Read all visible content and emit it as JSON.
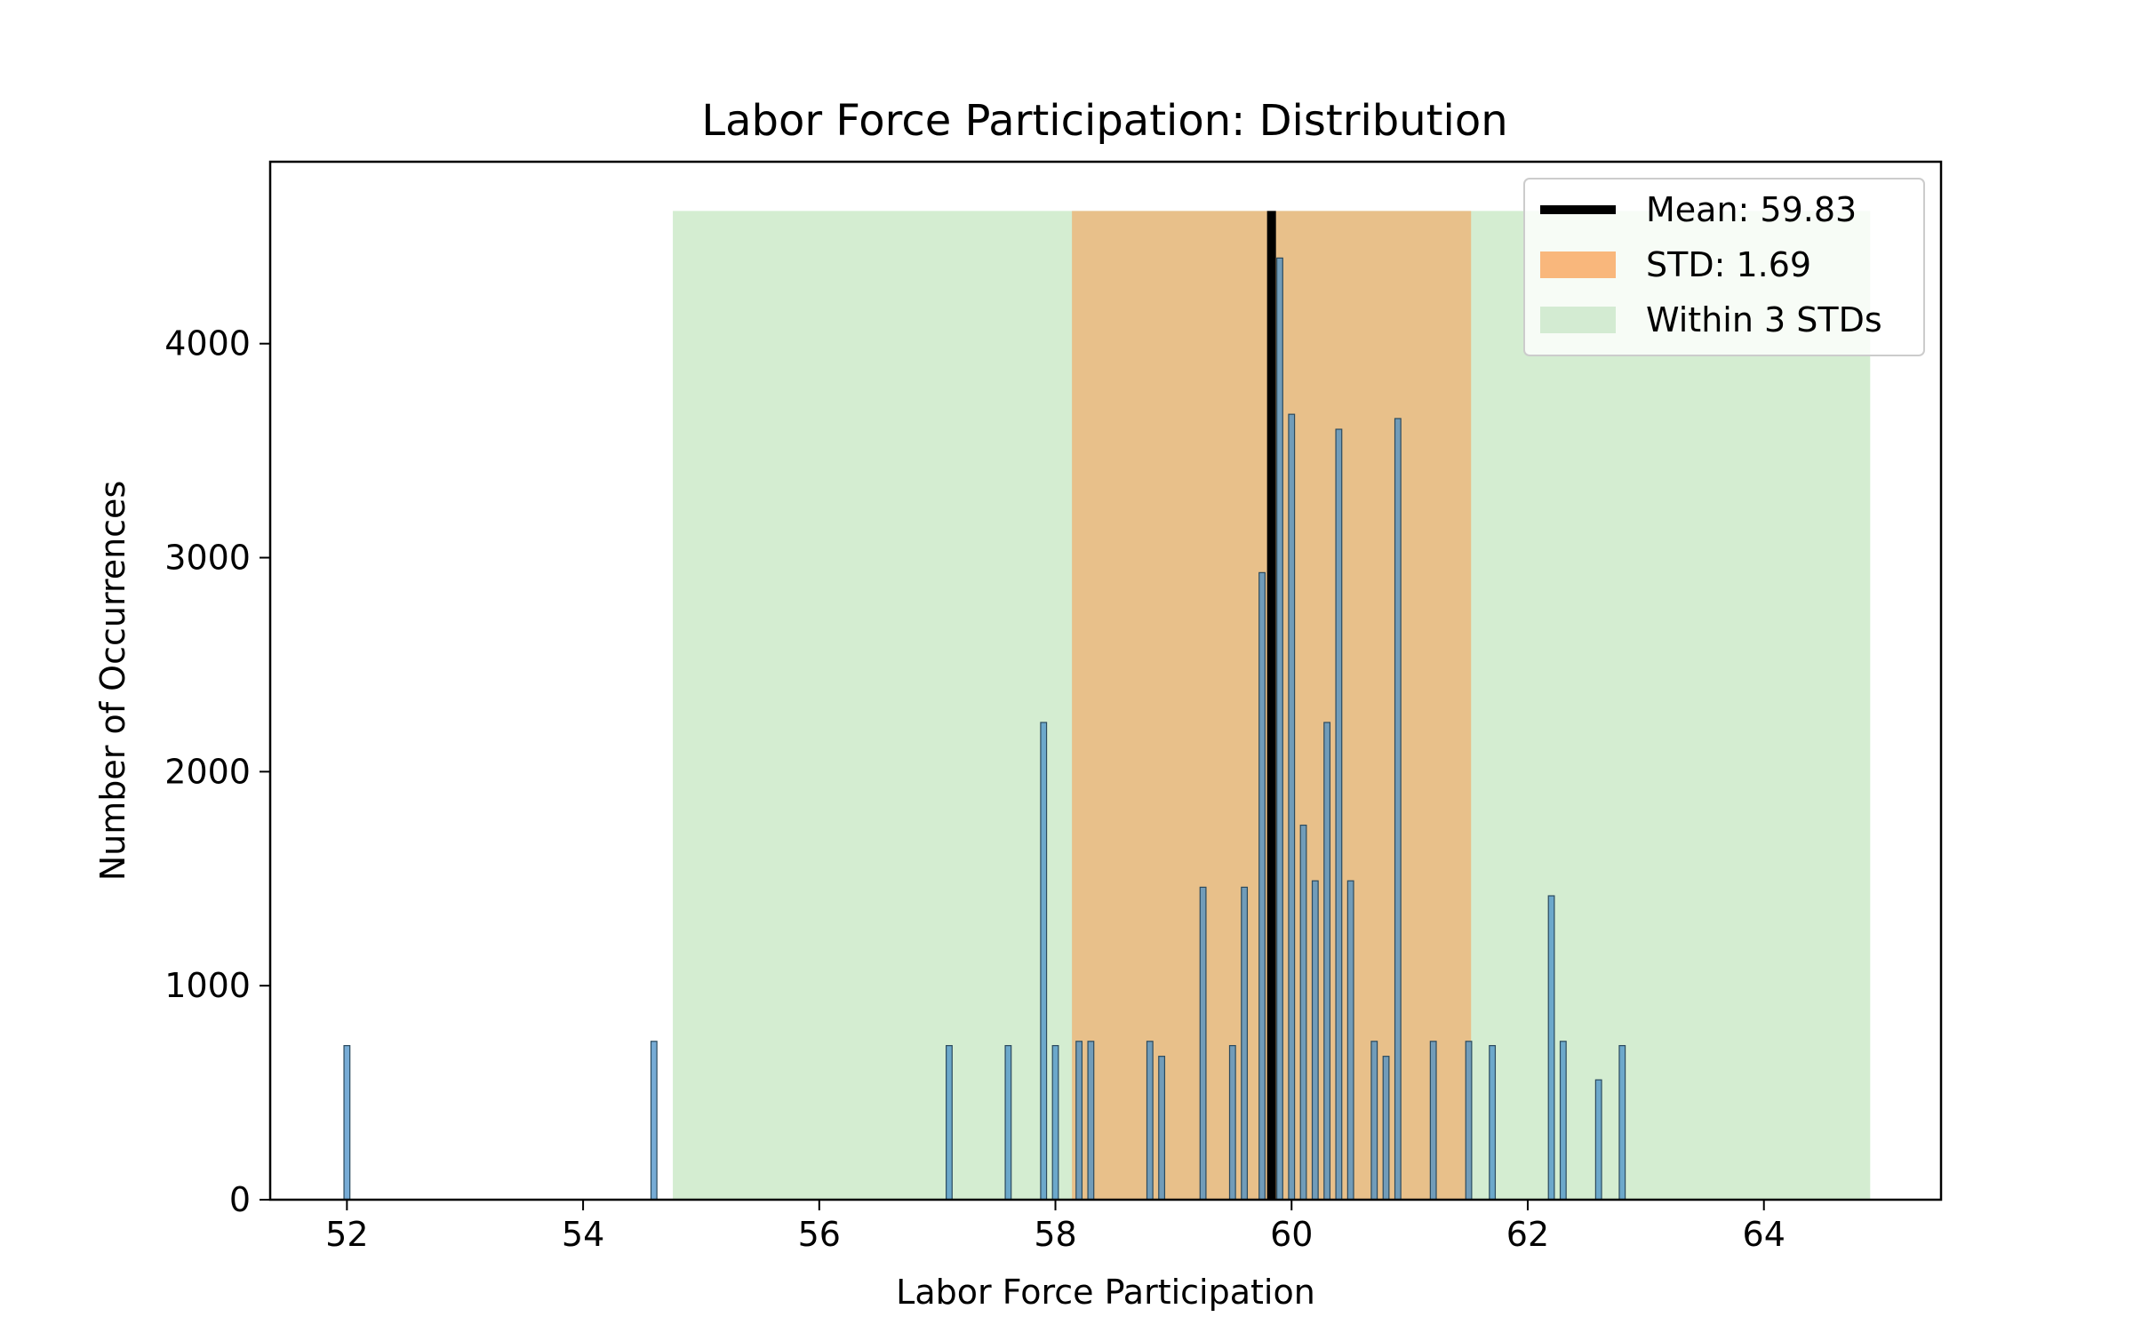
{
  "chart_data": {
    "type": "bar",
    "title": "Labor Force Participation: Distribution",
    "xlabel": "Labor Force Participation",
    "ylabel": "Number of Occurrences",
    "xlim": [
      51.35,
      65.5
    ],
    "ylim": [
      0,
      4850
    ],
    "xticks": [
      52,
      54,
      56,
      58,
      60,
      62,
      64
    ],
    "yticks": [
      0,
      1000,
      2000,
      3000,
      4000
    ],
    "bar_width": 0.05,
    "bars": [
      {
        "x": 52.0,
        "y": 720
      },
      {
        "x": 54.6,
        "y": 740
      },
      {
        "x": 57.1,
        "y": 720
      },
      {
        "x": 57.6,
        "y": 720
      },
      {
        "x": 57.9,
        "y": 2230
      },
      {
        "x": 58.0,
        "y": 720
      },
      {
        "x": 58.2,
        "y": 740
      },
      {
        "x": 58.3,
        "y": 740
      },
      {
        "x": 58.8,
        "y": 740
      },
      {
        "x": 58.9,
        "y": 670
      },
      {
        "x": 59.25,
        "y": 1460
      },
      {
        "x": 59.5,
        "y": 720
      },
      {
        "x": 59.6,
        "y": 1460
      },
      {
        "x": 59.75,
        "y": 2930
      },
      {
        "x": 59.9,
        "y": 4400
      },
      {
        "x": 60.0,
        "y": 3670
      },
      {
        "x": 60.1,
        "y": 1750
      },
      {
        "x": 60.2,
        "y": 1490
      },
      {
        "x": 60.3,
        "y": 2230
      },
      {
        "x": 60.4,
        "y": 3600
      },
      {
        "x": 60.5,
        "y": 1490
      },
      {
        "x": 60.7,
        "y": 740
      },
      {
        "x": 60.8,
        "y": 670
      },
      {
        "x": 60.9,
        "y": 3650
      },
      {
        "x": 61.2,
        "y": 740
      },
      {
        "x": 61.5,
        "y": 740
      },
      {
        "x": 61.7,
        "y": 720
      },
      {
        "x": 62.2,
        "y": 1420
      },
      {
        "x": 62.3,
        "y": 740
      },
      {
        "x": 62.6,
        "y": 560
      },
      {
        "x": 62.8,
        "y": 720
      }
    ],
    "mean": 59.83,
    "std": 1.69,
    "band_top": 4620,
    "colors": {
      "bar_fill": "#4a90c8",
      "bar_edge": "#2b4a5e",
      "mean_line": "#000000",
      "std_band": "#f5a25a",
      "three_std_band": "#a9dba4"
    },
    "legend": {
      "position": "top-right",
      "entries": [
        {
          "label": "Mean: 59.83",
          "kind": "line",
          "color": "#000000"
        },
        {
          "label": "STD: 1.69",
          "kind": "patch",
          "color": "#f9b77c"
        },
        {
          "label": "Within 3 STDs",
          "kind": "patch",
          "color": "#d3ebd2"
        }
      ]
    }
  }
}
